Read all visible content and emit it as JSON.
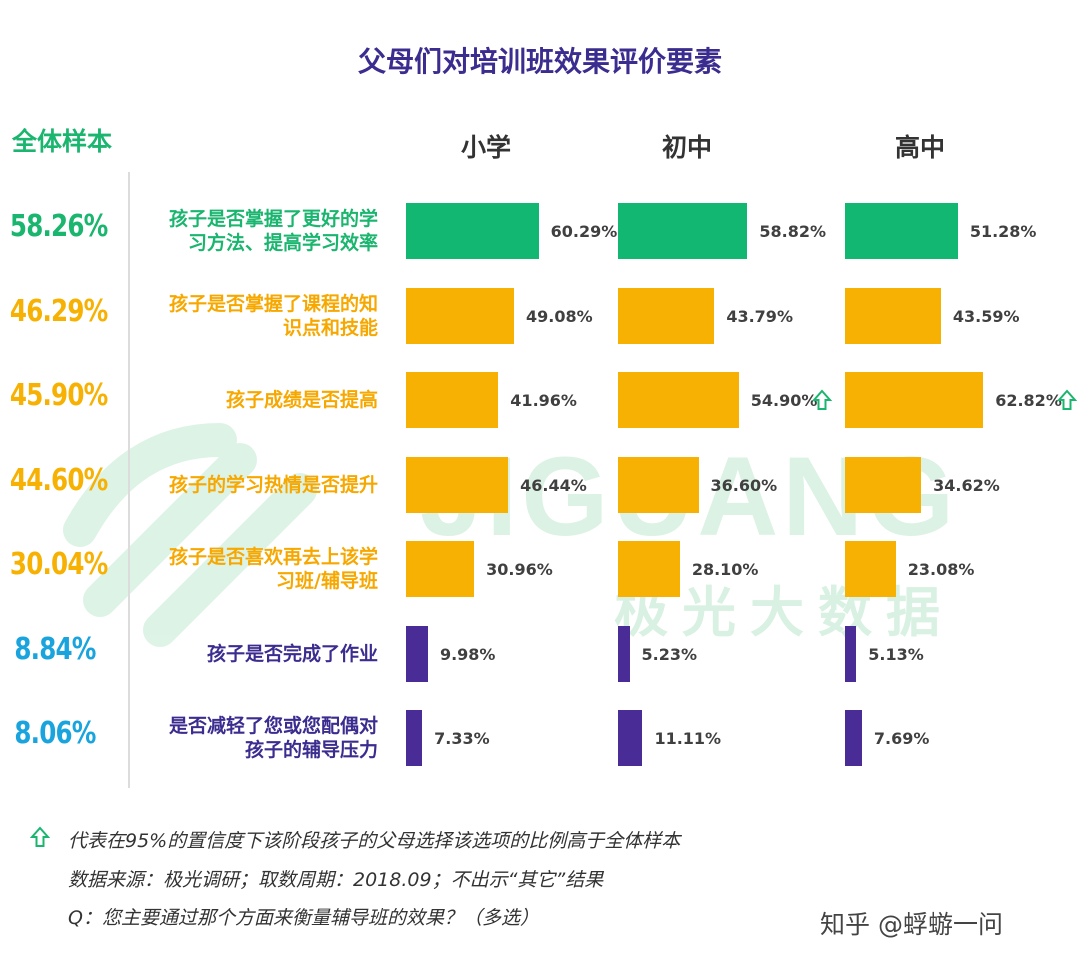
{
  "title": "父母们对培训班效果评价要素",
  "overall_label": "全体样本",
  "columns": [
    "小学",
    "初中",
    "高中"
  ],
  "chart_data": {
    "type": "bar",
    "title": "父母们对培训班效果评价要素",
    "categories": [
      "孩子是否掌握了更好的学习方法、提高学习效率",
      "孩子是否掌握了课程的知识点和技能",
      "孩子成绩是否提高",
      "孩子的学习热情是否提升",
      "孩子是否喜欢再去上该学习班/辅导班",
      "孩子是否完成了作业",
      "是否减轻了您或您配偶对孩子的辅导压力"
    ],
    "overall": [
      "58.26%",
      "46.29%",
      "45.90%",
      "44.60%",
      "30.04%",
      "8.84%",
      "8.06%"
    ],
    "series": [
      {
        "name": "小学",
        "values": [
          60.29,
          49.08,
          41.96,
          46.44,
          30.96,
          9.98,
          7.33
        ],
        "labels": [
          "60.29%",
          "49.08%",
          "41.96%",
          "46.44%",
          "30.96%",
          "9.98%",
          "7.33%"
        ]
      },
      {
        "name": "初中",
        "values": [
          58.82,
          43.79,
          54.9,
          36.6,
          28.1,
          5.23,
          11.11
        ],
        "labels": [
          "58.82%",
          "43.79%",
          "54.90%",
          "36.60%",
          "28.10%",
          "5.23%",
          "11.11%"
        ]
      },
      {
        "name": "高中",
        "values": [
          51.28,
          43.59,
          62.82,
          34.62,
          23.08,
          5.13,
          7.69
        ],
        "labels": [
          "51.28%",
          "43.59%",
          "62.82%",
          "34.62%",
          "23.08%",
          "5.13%",
          "7.69%"
        ]
      }
    ],
    "significant_higher": [
      {
        "series": 1,
        "row": 2
      },
      {
        "series": 2,
        "row": 2
      }
    ],
    "row_colors": [
      "#12b872",
      "#f7b103",
      "#f7b103",
      "#f7b103",
      "#f7b103",
      "#4a2c96",
      "#4a2c96"
    ],
    "overall_colors": [
      "#1ab56e",
      "#f7b103",
      "#f7b103",
      "#f7b103",
      "#f7b103",
      "#1aa4de",
      "#1aa4de"
    ],
    "label_colors": [
      "#1ab56e",
      "#f7a800",
      "#f7a800",
      "#f7a800",
      "#f7a800",
      "#3b2d8f",
      "#3b2d8f"
    ]
  },
  "row_label_lines": [
    [
      "孩子是否掌握了更好的学",
      "习方法、提高学习效率"
    ],
    [
      "孩子是否掌握了课程的知",
      "识点和技能"
    ],
    [
      "孩子成绩是否提高"
    ],
    [
      "孩子的学习热情是否提升"
    ],
    [
      "孩子是否喜欢再去上该学",
      "习班/辅导班"
    ],
    [
      "孩子是否完成了作业"
    ],
    [
      "是否减轻了您或您配偶对",
      "孩子的辅导压力"
    ]
  ],
  "watermark": {
    "text": "JIGUANG",
    "cn": "极光大数据",
    "logo_icon": "jiguang-logo-icon"
  },
  "footnotes": {
    "arrow_note": "代表在95%的置信度下该阶段孩子的父母选择该选项的比例高于全体样本",
    "source": "数据来源：极光调研；取数周期：2018.09；不出示“其它”结果",
    "question": "Q：您主要通过那个方面来衡量辅导班的效果？（多选）"
  },
  "credit": "知乎 @蜉蝣一问"
}
